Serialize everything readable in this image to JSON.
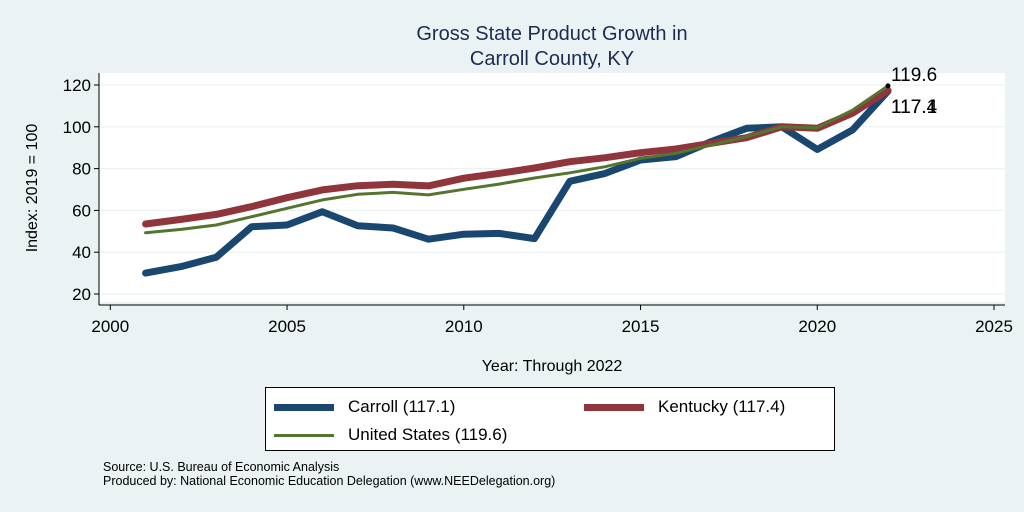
{
  "chart_data": {
    "type": "line",
    "title": [
      "Gross State Product Growth in",
      "Carroll County, KY"
    ],
    "xlabel": "Year: Through 2022",
    "ylabel": "Index: 2019 = 100",
    "xlim": [
      2000,
      2025
    ],
    "ylim": [
      20,
      120
    ],
    "xticks": [
      2000,
      2005,
      2010,
      2015,
      2020,
      2025
    ],
    "yticks": [
      20,
      40,
      60,
      80,
      100,
      120
    ],
    "grid": true,
    "legend_position": "bottom",
    "x": [
      2001,
      2002,
      2003,
      2004,
      2005,
      2006,
      2007,
      2008,
      2009,
      2010,
      2011,
      2012,
      2013,
      2014,
      2015,
      2016,
      2017,
      2018,
      2019,
      2020,
      2021,
      2022
    ],
    "series": [
      {
        "name": "Carroll",
        "legend_label": "Carroll  (117.1)",
        "color": "#1A476F",
        "values": [
          30.0,
          33.1,
          37.6,
          52.2,
          53.0,
          59.4,
          52.7,
          51.6,
          46.2,
          48.6,
          49.0,
          46.5,
          73.9,
          77.7,
          84.1,
          85.7,
          92.9,
          99.3,
          100.0,
          89.2,
          98.5,
          117.1
        ],
        "end_label": "117.1"
      },
      {
        "name": "Kentucky",
        "legend_label": "Kentucky (117.4)",
        "color": "#90353B",
        "values": [
          53.5,
          55.7,
          58.1,
          61.8,
          66.1,
          69.8,
          71.8,
          72.5,
          71.7,
          75.4,
          77.7,
          80.3,
          83.3,
          85.2,
          87.6,
          89.4,
          92.1,
          94.8,
          100.0,
          99.3,
          106.5,
          117.4
        ],
        "end_label": "117.4"
      },
      {
        "name": "United States",
        "legend_label": "United States (119.6)",
        "color": "#55752F",
        "values": [
          49.3,
          50.9,
          53.0,
          57.0,
          61.0,
          65.0,
          67.7,
          68.6,
          67.4,
          70.1,
          72.6,
          75.5,
          78.0,
          80.9,
          84.9,
          87.3,
          91.3,
          95.3,
          100.0,
          99.5,
          108.0,
          119.6
        ],
        "end_label": "119.6"
      }
    ]
  },
  "footer": {
    "source": "Source: U.S. Bureau of Economic Analysis",
    "produced_by": "Produced by: National Economic Education Delegation (www.NEEDelegation.org)"
  }
}
